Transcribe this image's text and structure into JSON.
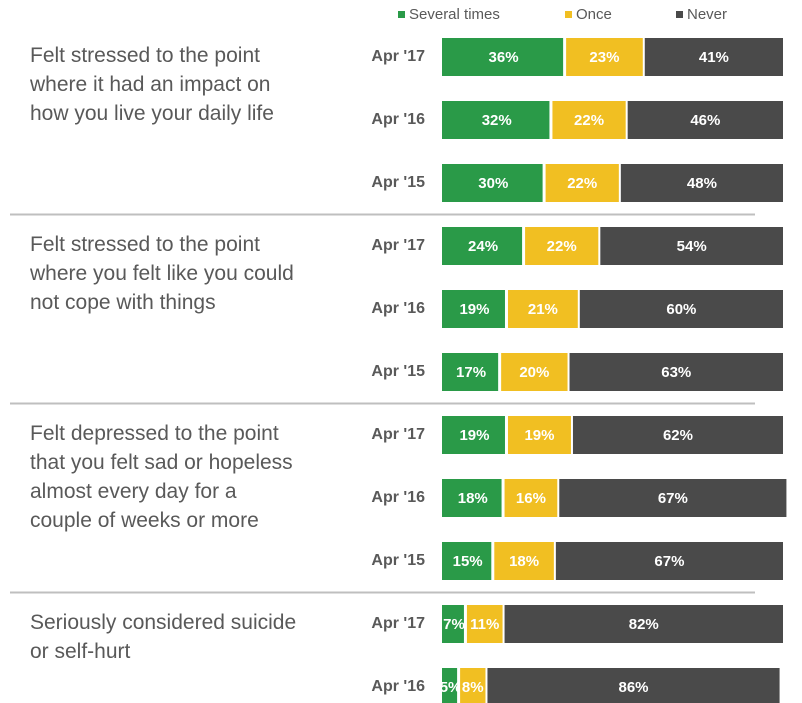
{
  "chart_data": [
    {
      "type": "bar",
      "title": "Felt stressed to the point where it had an impact on how you live your daily life",
      "categories": [
        "Apr '17",
        "Apr '16",
        "Apr '15"
      ],
      "xlim": [
        0,
        100
      ],
      "series": [
        {
          "name": "Several times",
          "color": "#2a9a48",
          "values": [
            36,
            32,
            30
          ],
          "value_labels": [
            "36%",
            "32%",
            "30%"
          ]
        },
        {
          "name": "Once",
          "color": "#f1bf22",
          "values": [
            23,
            22,
            22
          ],
          "value_labels": [
            "23%",
            "22%",
            "22%"
          ]
        },
        {
          "name": "Never",
          "color": "#4a4a4a",
          "values": [
            41,
            46,
            48
          ],
          "value_labels": [
            "41%",
            "46%",
            "48%"
          ]
        }
      ]
    },
    {
      "type": "bar",
      "title": "Felt stressed to the point where you felt like you could not cope with things",
      "categories": [
        "Apr '17",
        "Apr '16",
        "Apr '15"
      ],
      "xlim": [
        0,
        100
      ],
      "series": [
        {
          "name": "Several times",
          "color": "#2a9a48",
          "values": [
            24,
            19,
            17
          ],
          "value_labels": [
            "24%",
            "19%",
            "17%"
          ]
        },
        {
          "name": "Once",
          "color": "#f1bf22",
          "values": [
            22,
            21,
            20
          ],
          "value_labels": [
            "22%",
            "21%",
            "20%"
          ]
        },
        {
          "name": "Never",
          "color": "#4a4a4a",
          "values": [
            54,
            60,
            63
          ],
          "value_labels": [
            "54%",
            "60%",
            "63%"
          ]
        }
      ]
    },
    {
      "type": "bar",
      "title": "Felt depressed to the point that you felt sad or hopeless almost every day for a couple of weeks or more",
      "categories": [
        "Apr '17",
        "Apr '16",
        "Apr '15"
      ],
      "xlim": [
        0,
        100
      ],
      "series": [
        {
          "name": "Several times",
          "color": "#2a9a48",
          "values": [
            19,
            18,
            15
          ],
          "value_labels": [
            "19%",
            "18%",
            "15%"
          ]
        },
        {
          "name": "Once",
          "color": "#f1bf22",
          "values": [
            19,
            16,
            18
          ],
          "value_labels": [
            "19%",
            "16%",
            "18%"
          ]
        },
        {
          "name": "Never",
          "color": "#4a4a4a",
          "values": [
            62,
            67,
            67
          ],
          "value_labels": [
            "62%",
            "67%",
            "67%"
          ]
        }
      ]
    },
    {
      "type": "bar",
      "title": "Seriously considered suicide or self-hurt",
      "categories": [
        "Apr '17",
        "Apr '16"
      ],
      "xlim": [
        0,
        100
      ],
      "series": [
        {
          "name": "Several times",
          "color": "#2a9a48",
          "values": [
            7,
            5
          ],
          "value_labels": [
            "7%",
            "5%"
          ]
        },
        {
          "name": "Once",
          "color": "#f1bf22",
          "values": [
            11,
            8
          ],
          "value_labels": [
            "11%",
            "8%"
          ]
        },
        {
          "name": "Never",
          "color": "#4a4a4a",
          "values": [
            82,
            86
          ],
          "value_labels": [
            "82%",
            "86%"
          ]
        }
      ]
    }
  ]
}
